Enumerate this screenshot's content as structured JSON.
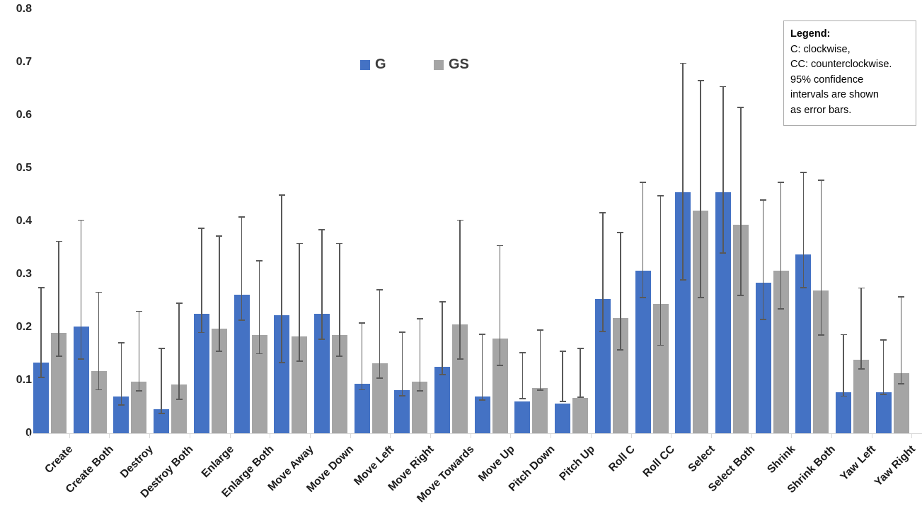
{
  "chart_data": {
    "type": "bar",
    "title": "",
    "xlabel": "",
    "ylabel": "",
    "ylim": [
      0,
      0.8
    ],
    "y_ticks": [
      "0",
      "0.1",
      "0.2",
      "0.3",
      "0.4",
      "0.5",
      "0.6",
      "0.7",
      "0.8"
    ],
    "grid": "off",
    "legend_position": "top-center",
    "error_bars": "95% confidence intervals",
    "categories": [
      "Create",
      "Create Both",
      "Destroy",
      "Destroy Both",
      "Enlarge",
      "Enlarge Both",
      "Move Away",
      "Move Down",
      "Move Left",
      "Move Right",
      "Move Towards",
      "Move Up",
      "Pitch Down",
      "Pitch Up",
      "Roll C",
      "Roll CC",
      "Select",
      "Select Both",
      "Shrink",
      "Shrink Both",
      "Yaw Left",
      "Yaw Right"
    ],
    "series": [
      {
        "name": "G",
        "color": "#4472C4",
        "values": [
          0.133,
          0.202,
          0.07,
          0.046,
          0.226,
          0.262,
          0.223,
          0.226,
          0.093,
          0.082,
          0.125,
          0.069,
          0.06,
          0.056,
          0.253,
          0.307,
          0.455,
          0.455,
          0.284,
          0.338,
          0.077,
          0.077
        ],
        "ci_low": [
          0.105,
          0.14,
          0.053,
          0.037,
          0.19,
          0.213,
          0.133,
          0.177,
          0.082,
          0.071,
          0.111,
          0.063,
          0.065,
          0.06,
          0.192,
          0.256,
          0.289,
          0.34,
          0.215,
          0.275,
          0.07,
          0.073
        ],
        "ci_high": [
          0.275,
          0.402,
          0.171,
          0.16,
          0.387,
          0.408,
          0.449,
          0.384,
          0.208,
          0.191,
          0.248,
          0.187,
          0.152,
          0.155,
          0.416,
          0.473,
          0.698,
          0.654,
          0.44,
          0.492,
          0.186,
          0.176
        ]
      },
      {
        "name": "GS",
        "color": "#A5A5A5",
        "values": [
          0.19,
          0.118,
          0.098,
          0.092,
          0.197,
          0.185,
          0.183,
          0.186,
          0.132,
          0.098,
          0.205,
          0.179,
          0.085,
          0.067,
          0.218,
          0.244,
          0.42,
          0.393,
          0.307,
          0.27,
          0.139,
          0.114
        ],
        "ci_low": [
          0.145,
          0.082,
          0.08,
          0.064,
          0.155,
          0.15,
          0.136,
          0.145,
          0.104,
          0.08,
          0.14,
          0.128,
          0.081,
          0.068,
          0.157,
          0.166,
          0.256,
          0.26,
          0.235,
          0.185,
          0.121,
          0.093
        ],
        "ci_high": [
          0.362,
          0.266,
          0.23,
          0.245,
          0.372,
          0.325,
          0.358,
          0.358,
          0.271,
          0.216,
          0.402,
          0.354,
          0.195,
          0.16,
          0.379,
          0.448,
          0.665,
          0.615,
          0.473,
          0.477,
          0.274,
          0.257
        ]
      }
    ]
  },
  "annotation_box": {
    "title": "Legend:",
    "lines": [
      "C: clockwise,",
      "CC: counterclockwise.",
      "95% confidence",
      "intervals are shown",
      "as error bars."
    ]
  },
  "colors": {
    "bar_blue": "#4472C4",
    "bar_gray": "#A5A5A5",
    "error_bar": "#595959",
    "axis_line": "#D9D9D9",
    "text": "#262626"
  }
}
